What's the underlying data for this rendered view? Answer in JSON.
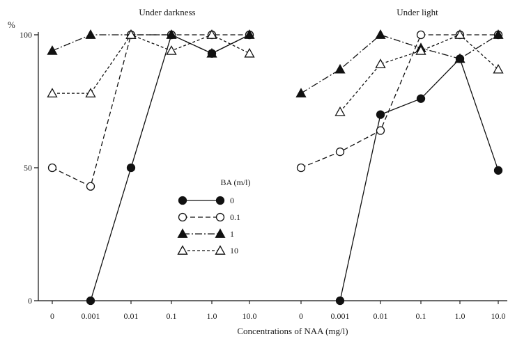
{
  "chart_data": {
    "type": "line",
    "xlabel": "Concentrations of NAA (mg/l)",
    "ylabel": "%",
    "ylim": [
      0,
      100
    ],
    "yticks": [
      0,
      50,
      100
    ],
    "grid": false,
    "legend": {
      "title": "BA (m/l)",
      "placement": "center",
      "entries": [
        {
          "label": "0",
          "style": "filled-circle-solid"
        },
        {
          "label": "0.1",
          "style": "open-circle-dashed"
        },
        {
          "label": "1",
          "style": "filled-triangle-dashdot"
        },
        {
          "label": "10",
          "style": "open-triangle-dotted"
        }
      ]
    },
    "panels": [
      {
        "title": "Under darkness",
        "categories": [
          "0",
          "0.001",
          "0.01",
          "0.1",
          "1.0",
          "10.0"
        ],
        "series": [
          {
            "name": "0",
            "values": [
              null,
              0,
              50,
              100,
              93,
              100
            ]
          },
          {
            "name": "0.1",
            "values": [
              50,
              43,
              100,
              100,
              100,
              100
            ]
          },
          {
            "name": "1",
            "values": [
              94,
              100,
              100,
              100,
              93,
              100
            ]
          },
          {
            "name": "10",
            "values": [
              78,
              78,
              100,
              94,
              100,
              93
            ]
          }
        ]
      },
      {
        "title": "Under light",
        "categories": [
          "0",
          "0.001",
          "0.01",
          "0.1",
          "1.0",
          "10.0"
        ],
        "series": [
          {
            "name": "0",
            "values": [
              null,
              0,
              70,
              76,
              91,
              49
            ]
          },
          {
            "name": "0.1",
            "values": [
              50,
              56,
              64,
              100,
              100,
              100
            ]
          },
          {
            "name": "1",
            "values": [
              78,
              87,
              100,
              95,
              91,
              100
            ]
          },
          {
            "name": "10",
            "values": [
              null,
              71,
              89,
              94,
              100,
              87
            ]
          }
        ]
      }
    ]
  }
}
